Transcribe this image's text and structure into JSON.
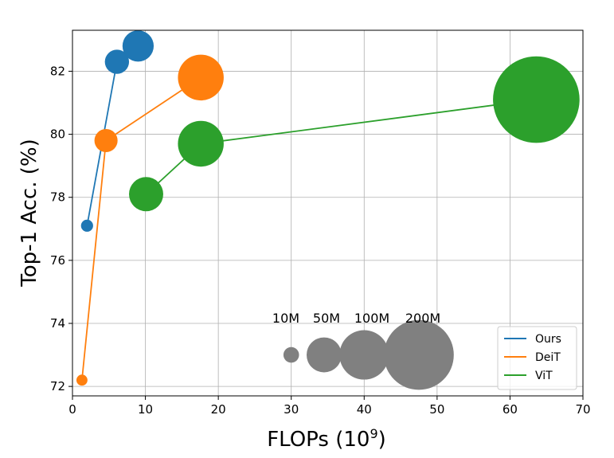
{
  "chart_data": {
    "type": "scatter",
    "title": "",
    "xlabel": "FLOPs (10",
    "xlabel_superscript": "9",
    "xlabel_suffix": ")",
    "ylabel": "Top-1 Acc. (%)",
    "xlim": [
      0,
      70
    ],
    "ylim": [
      71.7,
      83.3
    ],
    "xticks": [
      0,
      10,
      20,
      30,
      40,
      50,
      60,
      70
    ],
    "yticks": [
      72,
      74,
      76,
      78,
      80,
      82
    ],
    "grid": true,
    "legend_position": "bottom-right",
    "series": [
      {
        "name": "Ours",
        "color": "#1f77b4",
        "points": [
          {
            "x": 2.0,
            "y": 77.1,
            "size_m": 6
          },
          {
            "x": 6.1,
            "y": 82.3,
            "size_m": 24
          },
          {
            "x": 9.0,
            "y": 82.8,
            "size_m": 40
          }
        ]
      },
      {
        "name": "DeiT",
        "color": "#ff7f0e",
        "points": [
          {
            "x": 1.3,
            "y": 72.2,
            "size_m": 5
          },
          {
            "x": 4.6,
            "y": 79.8,
            "size_m": 22
          },
          {
            "x": 17.6,
            "y": 81.8,
            "size_m": 86
          }
        ]
      },
      {
        "name": "ViT",
        "color": "#2ca02c",
        "points": [
          {
            "x": 10.1,
            "y": 78.1,
            "size_m": 48
          },
          {
            "x": 17.6,
            "y": 79.7,
            "size_m": 86
          },
          {
            "x": 63.6,
            "y": 81.1,
            "size_m": 307
          }
        ]
      }
    ],
    "size_legend": {
      "color": "#808080",
      "entries": [
        {
          "label": "10M",
          "size_m": 10,
          "x": 30.0,
          "y": 73.0
        },
        {
          "label": "50M",
          "size_m": 50,
          "x": 34.5,
          "y": 73.0
        },
        {
          "label": "100M",
          "size_m": 100,
          "x": 40.0,
          "y": 73.0
        },
        {
          "label": "200M",
          "size_m": 200,
          "x": 47.5,
          "y": 73.0
        }
      ]
    }
  }
}
